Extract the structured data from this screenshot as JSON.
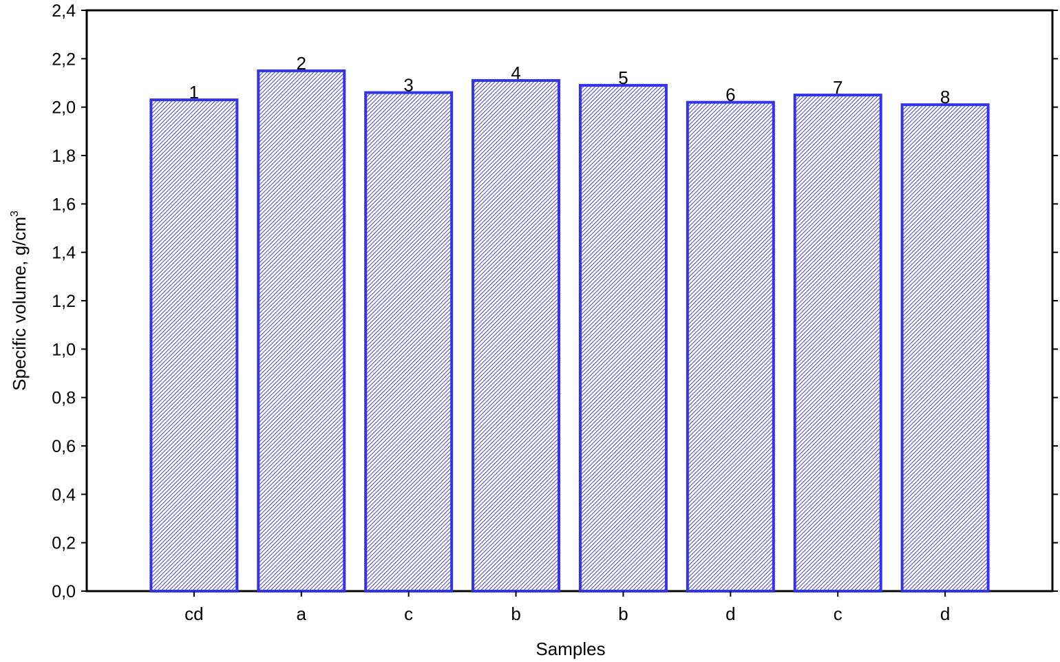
{
  "chart_data": {
    "type": "bar",
    "title": "",
    "xlabel": "Samples",
    "ylabel": "Specific volume, g/cm",
    "ylabel_superscript": "3",
    "ylim": [
      0,
      2.4
    ],
    "yticks": [
      "0,0",
      "0,2",
      "0,4",
      "0,6",
      "0,8",
      "1,0",
      "1,2",
      "1,4",
      "1,6",
      "1,8",
      "2,0",
      "2,2",
      "2,4"
    ],
    "categories": [
      "cd",
      "a",
      "c",
      "b",
      "b",
      "d",
      "c",
      "d"
    ],
    "bar_labels": [
      "1",
      "2",
      "3",
      "4",
      "5",
      "6",
      "7",
      "8"
    ],
    "values": [
      2.03,
      2.15,
      2.06,
      2.11,
      2.09,
      2.02,
      2.05,
      2.01
    ],
    "grid": false,
    "legend": "none",
    "colors": {
      "bar_edge": "#3333ee",
      "bar_hatch": "#4444cc",
      "axis": "#000000"
    }
  }
}
